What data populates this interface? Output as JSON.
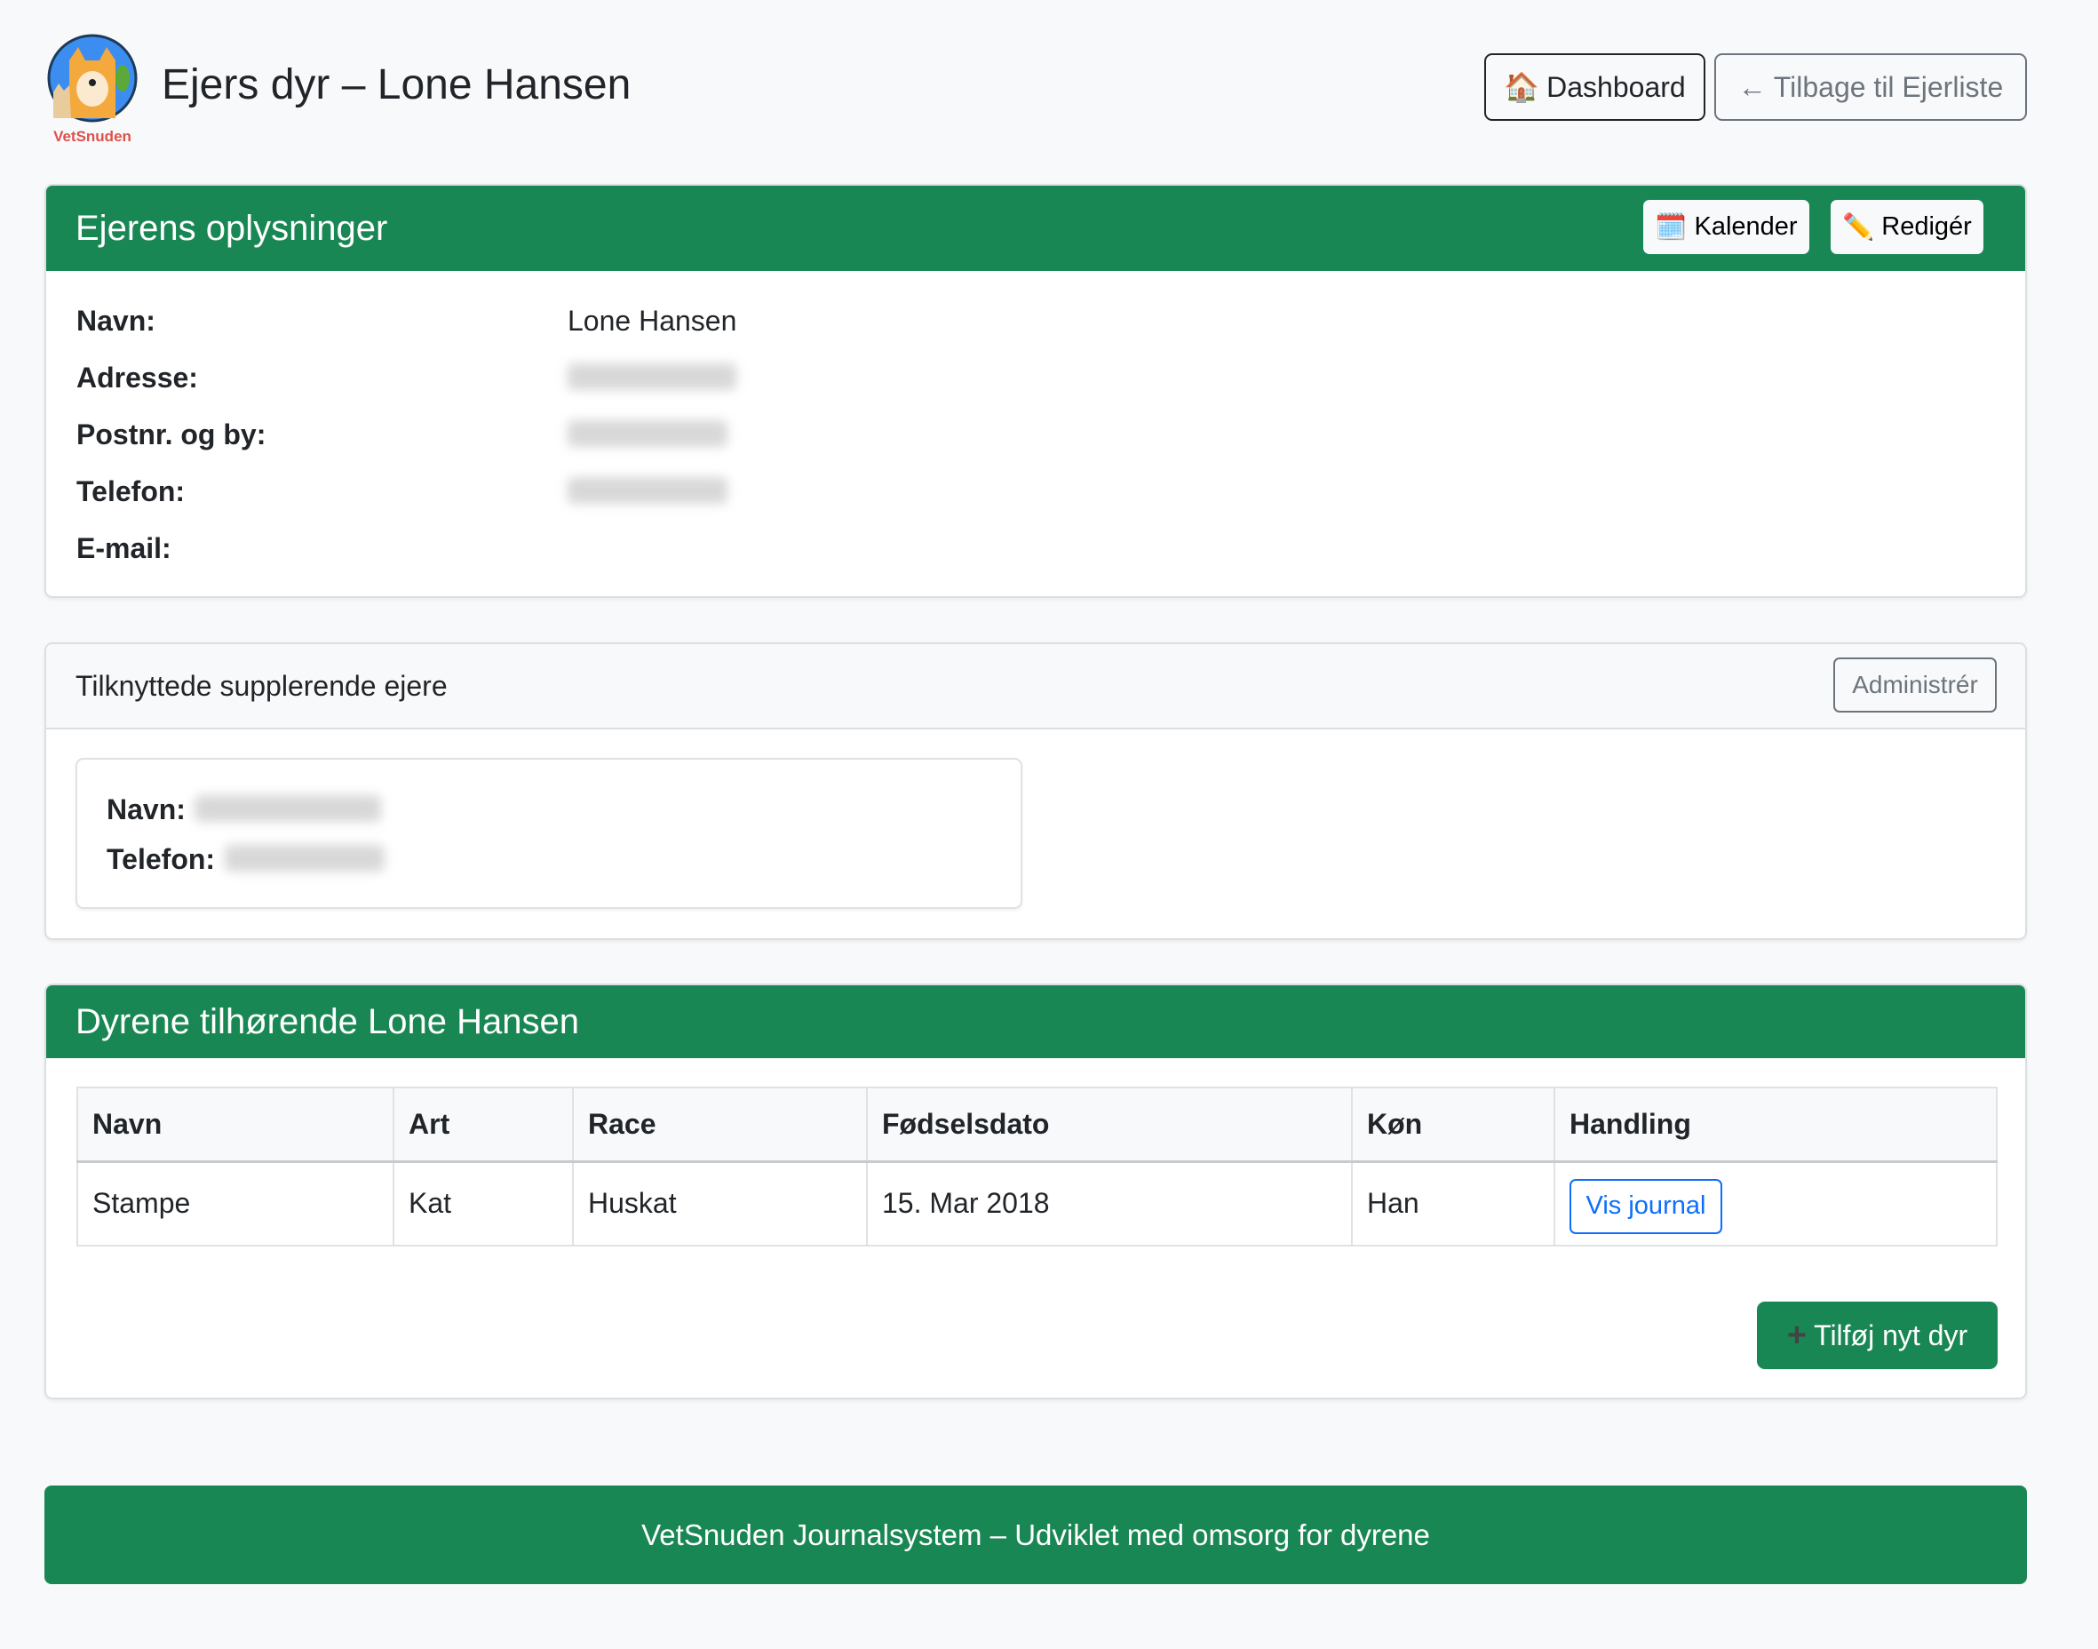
{
  "header": {
    "logo_text": "VetSnuden",
    "title": "Ejers dyr – Lone Hansen",
    "dashboard_label": "Dashboard",
    "back_label": "Tilbage til Ejerliste"
  },
  "owner_card": {
    "title": "Ejerens oplysninger",
    "calendar_label": "Kalender",
    "edit_label": "Redigér",
    "fields": [
      {
        "label": "Navn:",
        "value": "Lone Hansen"
      },
      {
        "label": "Adresse:",
        "value": null
      },
      {
        "label": "Postnr. og by:",
        "value": null
      },
      {
        "label": "Telefon:",
        "value": null
      },
      {
        "label": "E-mail:",
        "value": ""
      }
    ]
  },
  "supplementary": {
    "title": "Tilknyttede supplerende ejere",
    "manage_label": "Administrér",
    "name_label": "Navn:",
    "phone_label": "Telefon:"
  },
  "animals": {
    "title": "Dyrene tilhørende Lone Hansen",
    "columns": [
      "Navn",
      "Art",
      "Race",
      "Fødselsdato",
      "Køn",
      "Handling"
    ],
    "rows": [
      {
        "name": "Stampe",
        "species": "Kat",
        "breed": "Huskat",
        "birthdate": "15. Mar 2018",
        "sex": "Han",
        "action": "Vis journal"
      }
    ],
    "add_label": "Tilføj nyt dyr"
  },
  "footer": {
    "text": "VetSnuden Journalsystem – Udviklet med omsorg for dyrene"
  },
  "colors": {
    "primary_green": "#198754",
    "link_blue": "#0d6efd"
  }
}
